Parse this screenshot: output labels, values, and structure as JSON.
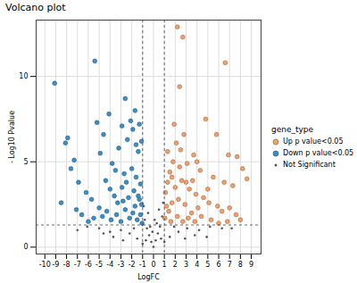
{
  "chart_data": {
    "type": "scatter",
    "title": "Volcano plot",
    "x_label": "LogFC",
    "y_label": "- Log10 Pvalue",
    "legend_title": "gene_type",
    "legend": "right",
    "grid": true,
    "xlim": [
      -10.8,
      9.9
    ],
    "ylim": [
      -0.4,
      13.3
    ],
    "xticks": [
      -10,
      -9,
      -8,
      -7,
      -6,
      -5,
      -4,
      -3,
      -2,
      -1,
      0,
      1,
      2,
      3,
      4,
      5,
      6,
      7,
      8,
      9
    ],
    "yticks": [
      0,
      5,
      10
    ],
    "thresholds": {
      "x": [
        -1,
        1
      ],
      "y": 1.3
    },
    "series": [
      {
        "name": "Up p value<0.05",
        "color": "#f2a06a",
        "marker": "circle",
        "x": [
          2.2,
          2.7,
          6.6,
          4.8,
          2.4,
          5.8,
          6.9,
          8.2,
          7.7,
          8.6,
          7.3,
          6.5,
          5.5,
          4.3,
          3.7,
          3.1,
          2.8,
          2.5,
          2.1,
          1.8,
          1.5,
          1.3,
          1.1,
          2.0,
          2.6,
          3.3,
          3.9,
          4.6,
          5.1,
          5.9,
          6.3,
          7.0,
          7.6,
          8.0,
          4.1,
          3.5,
          2.9,
          2.3,
          1.7,
          1.4,
          1.2,
          1.05,
          1.6,
          2.2,
          2.7,
          3.2,
          3.8,
          4.4,
          5.3,
          6.0,
          6.8,
          4.0,
          1.9,
          3.6,
          5.0,
          1.3,
          1.7,
          2.4,
          3.0
        ],
        "y": [
          12.9,
          12.3,
          10.8,
          7.5,
          9.4,
          6.6,
          5.4,
          4.6,
          5.3,
          4.0,
          3.6,
          3.8,
          4.1,
          4.5,
          5.4,
          4.9,
          6.6,
          5.7,
          6.1,
          5.0,
          4.4,
          3.8,
          3.2,
          3.5,
          3.9,
          3.4,
          3.1,
          2.9,
          2.6,
          2.4,
          2.1,
          2.3,
          1.9,
          1.6,
          2.3,
          2.0,
          2.5,
          2.8,
          2.6,
          2.1,
          2.4,
          1.7,
          1.5,
          1.8,
          1.5,
          1.7,
          1.5,
          1.8,
          1.6,
          1.4,
          1.5,
          5.0,
          7.2,
          3.9,
          3.4,
          5.6,
          4.1,
          4.7,
          3.8
        ]
      },
      {
        "name": "Down p value<0.05",
        "color": "#3a8fc7",
        "marker": "circle",
        "x": [
          -9.1,
          -5.4,
          -7.9,
          -8.1,
          -7.3,
          -7.6,
          -6.9,
          -6.2,
          -5.7,
          -8.5,
          -7.1,
          -6.6,
          -5.2,
          -4.9,
          -4.6,
          -4.1,
          -3.8,
          -3.5,
          -3.2,
          -2.9,
          -2.6,
          -2.4,
          -2.1,
          -1.9,
          -1.7,
          -1.6,
          -1.4,
          -1.3,
          -1.1,
          -4.4,
          -4.0,
          -3.6,
          -3.3,
          -2.9,
          -2.7,
          -2.5,
          -2.3,
          -2.0,
          -1.8,
          -1.6,
          -1.4,
          -1.2,
          -1.1,
          -5.0,
          -4.7,
          -4.3,
          -3.9,
          -3.4,
          -3.0,
          -2.6,
          -2.2,
          -1.9,
          -1.5,
          -1.2,
          -1.05,
          -6.0,
          -5.5,
          -2.8,
          -1.7,
          -1.3
        ],
        "y": [
          9.6,
          10.9,
          6.4,
          6.1,
          5.1,
          4.6,
          3.8,
          3.2,
          2.8,
          2.6,
          2.2,
          1.9,
          7.3,
          5.5,
          6.6,
          7.8,
          4.9,
          4.5,
          5.8,
          7.1,
          8.7,
          6.3,
          7.4,
          6.9,
          8.0,
          6.0,
          5.6,
          7.2,
          6.2,
          3.9,
          3.4,
          3.0,
          2.6,
          3.5,
          4.3,
          3.8,
          2.9,
          4.6,
          3.3,
          4.1,
          3.0,
          3.7,
          2.5,
          2.3,
          1.8,
          2.1,
          1.6,
          1.9,
          1.5,
          2.2,
          1.7,
          2.0,
          1.6,
          1.9,
          1.4,
          1.5,
          1.7,
          2.7,
          2.4,
          2.8
        ]
      },
      {
        "name": "Not Significant",
        "color": "#555555",
        "marker": "dot",
        "x": [
          0,
          -0.2,
          0.2,
          -0.4,
          0.4,
          -0.6,
          0.6,
          -0.8,
          0.8,
          -0.9,
          0.9,
          -0.5,
          0.5,
          -0.3,
          0.3,
          -1.5,
          1.5,
          -2.2,
          2.3,
          -3,
          3.1,
          -4,
          4.2,
          -5,
          5.2,
          -6.1,
          6.3,
          -2.8,
          2.9,
          -3.7,
          3.8,
          -1,
          1,
          -1.8,
          1.9,
          -4.6,
          4.9,
          -7,
          7.2,
          -0.1,
          0.1,
          -0.7,
          0.7
        ],
        "y": [
          0.02,
          0.3,
          0.4,
          0.7,
          0.8,
          1.1,
          1.2,
          1.6,
          1.8,
          2.4,
          2.6,
          2.0,
          2.2,
          1.2,
          1.4,
          0.5,
          0.6,
          0.8,
          0.9,
          1.0,
          1.1,
          0.9,
          1.0,
          1.1,
          1.2,
          1.2,
          1.1,
          0.4,
          0.5,
          0.6,
          0.7,
          0.2,
          0.3,
          1.1,
          1.2,
          0.8,
          0.6,
          1.0,
          1.1,
          0.9,
          1.6,
          0.4,
          0.5
        ]
      }
    ]
  }
}
